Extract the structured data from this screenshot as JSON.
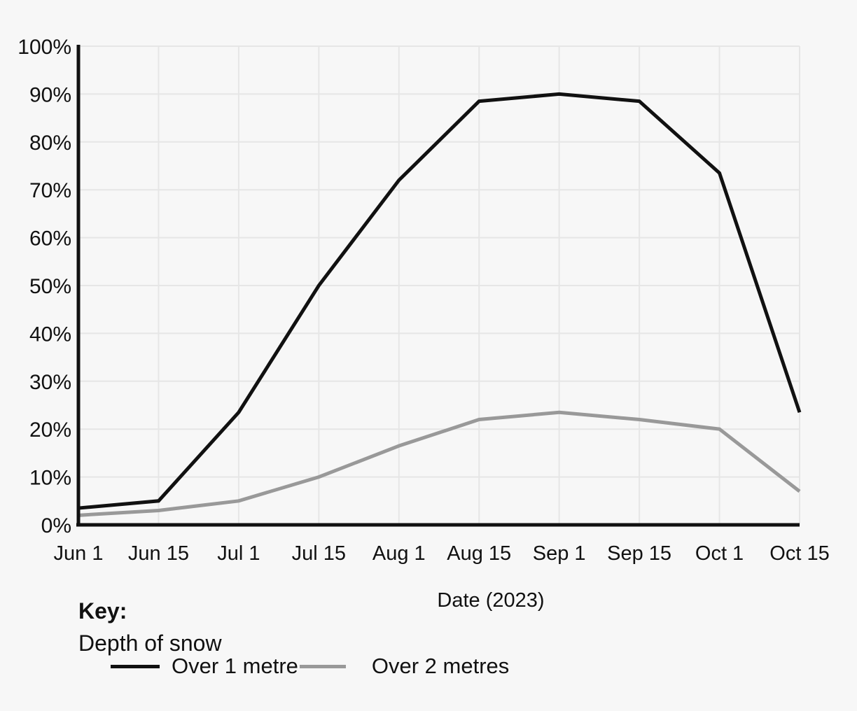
{
  "page": {
    "background": "#f7f7f7"
  },
  "colors": {
    "axis": "#111111",
    "grid": "#e6e6e6",
    "text": "#111111"
  },
  "chart_data": {
    "type": "line",
    "categories": [
      "Jun 1",
      "Jun 15",
      "Jul 1",
      "Jul 15",
      "Aug 1",
      "Aug 15",
      "Sep 1",
      "Sep 15",
      "Oct 1",
      "Oct 15"
    ],
    "series": [
      {
        "name": "Over 1 metre",
        "color": "#111111",
        "values": [
          3.5,
          5,
          23.5,
          50,
          72,
          88.5,
          90,
          88.5,
          73.5,
          23.5
        ]
      },
      {
        "name": "Over 2 metres",
        "color": "#999999",
        "values": [
          2,
          3,
          5,
          10,
          16.5,
          22,
          23.5,
          22,
          20,
          7
        ]
      }
    ],
    "xlabel": "Date (2023)",
    "ylabel": "",
    "ylim": [
      0,
      100
    ],
    "yticks": [
      0,
      10,
      20,
      30,
      40,
      50,
      60,
      70,
      80,
      90,
      100
    ],
    "ytick_suffix": "%",
    "grid": true,
    "legend": {
      "position": "bottom-left",
      "key_label": "Key:",
      "title": "Depth of snow"
    }
  }
}
